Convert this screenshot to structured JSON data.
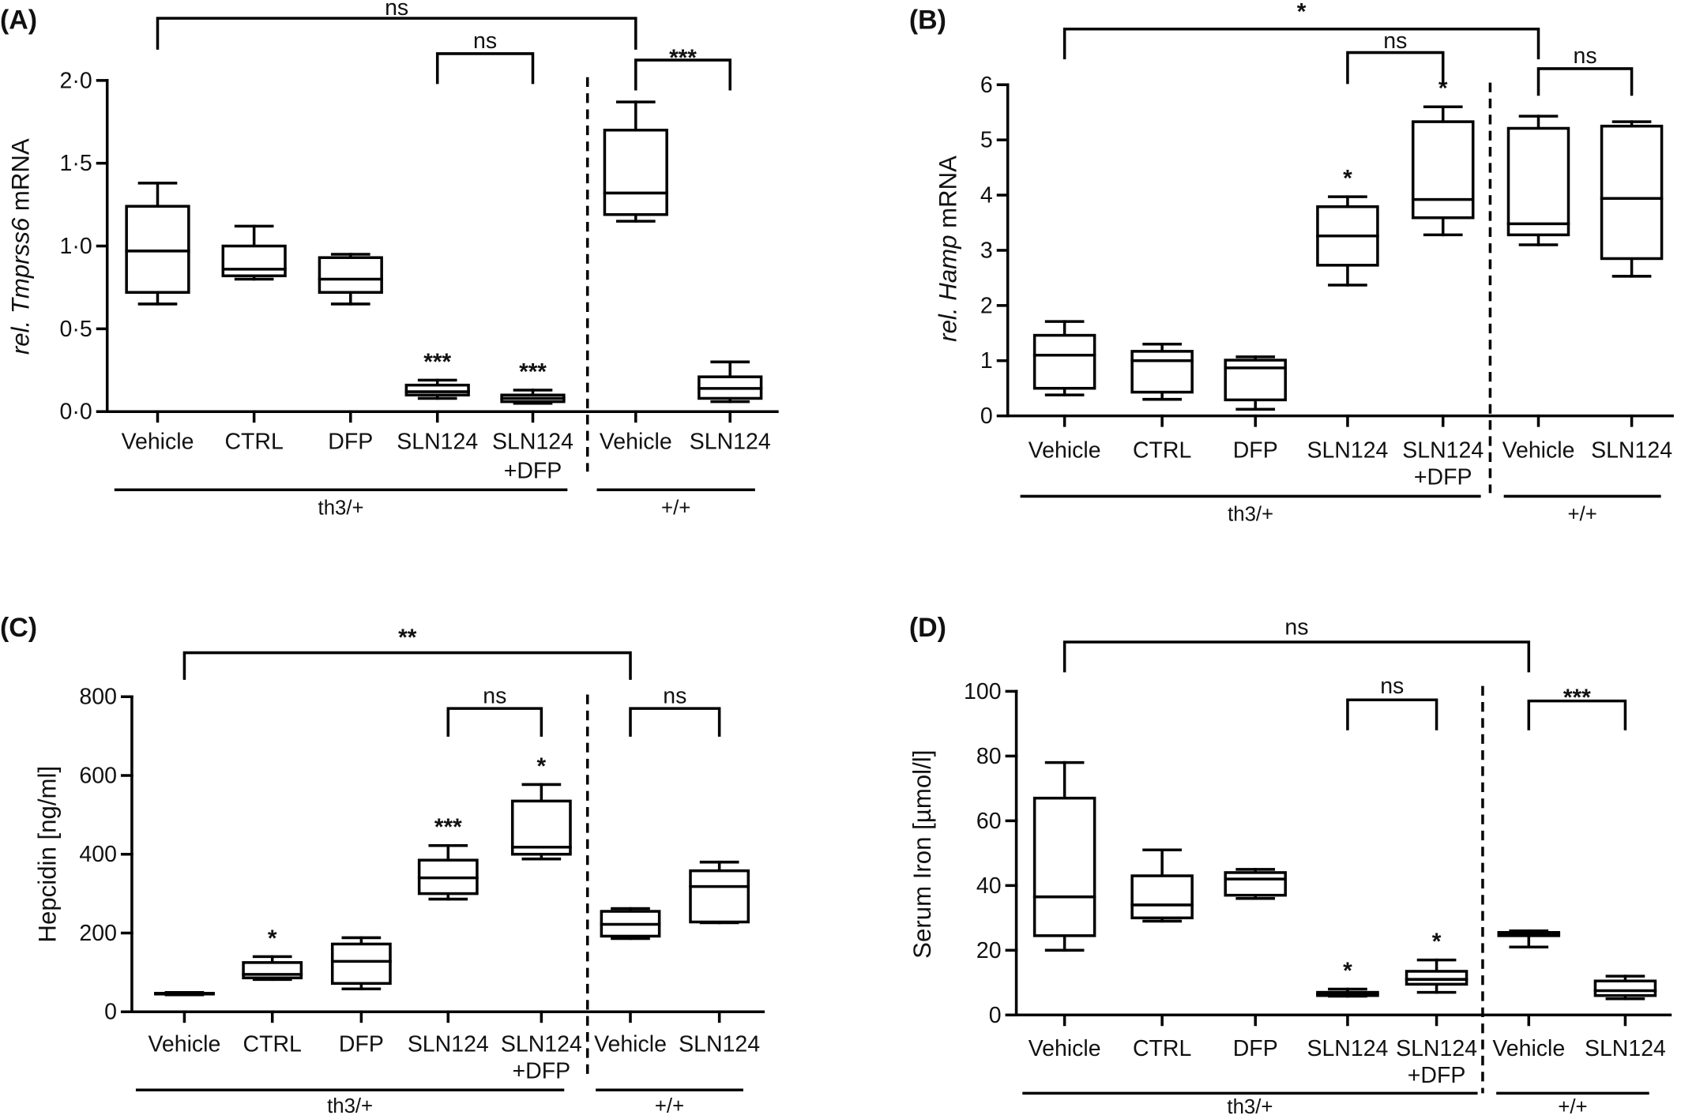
{
  "figure": {
    "background": "#ffffff",
    "line_color": "#000000"
  },
  "chart_data": [
    {
      "panel_label": "(A)",
      "type": "box",
      "ylabel": [
        {
          "text": "rel. Tmprss6",
          "italic": true
        },
        {
          "text": " mRNA",
          "italic": false
        }
      ],
      "ylim": [
        0,
        2.0
      ],
      "yticks": [
        0,
        0.5,
        1.0,
        1.5,
        2.0
      ],
      "ytick_labels": [
        "0·0",
        "0·5",
        "1·0",
        "1·5",
        "2·0"
      ],
      "grid": false,
      "categories": [
        [
          "Vehicle"
        ],
        [
          "CTRL"
        ],
        [
          "DFP"
        ],
        [
          "SLN124"
        ],
        [
          "SLN124",
          "+DFP"
        ],
        [
          "Vehicle"
        ],
        [
          "SLN124"
        ]
      ],
      "groups": [
        {
          "label": "th3/+",
          "first": 0,
          "last": 4
        },
        {
          "label": "+/+",
          "first": 5,
          "last": 6
        }
      ],
      "boxes": [
        {
          "min": 0.65,
          "q1": 0.72,
          "median": 0.97,
          "q3": 1.24,
          "max": 1.38
        },
        {
          "min": 0.8,
          "q1": 0.82,
          "median": 0.86,
          "q3": 1.0,
          "max": 1.12
        },
        {
          "min": 0.65,
          "q1": 0.72,
          "median": 0.8,
          "q3": 0.93,
          "max": 0.95
        },
        {
          "min": 0.08,
          "q1": 0.1,
          "median": 0.12,
          "q3": 0.16,
          "max": 0.19
        },
        {
          "min": 0.05,
          "q1": 0.06,
          "median": 0.08,
          "q3": 0.1,
          "max": 0.13
        },
        {
          "min": 1.15,
          "q1": 1.19,
          "median": 1.32,
          "q3": 1.7,
          "max": 1.87
        },
        {
          "min": 0.06,
          "q1": 0.08,
          "median": 0.14,
          "q3": 0.21,
          "max": 0.3
        }
      ],
      "marks_above": [
        {
          "category": 3,
          "text": "***"
        },
        {
          "category": 4,
          "text": "***"
        }
      ],
      "comparisons": [
        {
          "from": 0,
          "to": 5,
          "text": "ns"
        },
        {
          "from": 3,
          "to": 4,
          "text": "ns"
        },
        {
          "from": 5,
          "to": 6,
          "text": "***"
        }
      ]
    },
    {
      "panel_label": "(B)",
      "type": "box",
      "ylabel": [
        {
          "text": "rel. Hamp",
          "italic": true
        },
        {
          "text": " mRNA",
          "italic": false
        }
      ],
      "ylim": [
        0,
        6
      ],
      "yticks": [
        0,
        1,
        2,
        3,
        4,
        5,
        6
      ],
      "ytick_labels": [
        "0",
        "1",
        "2",
        "3",
        "4",
        "5",
        "6"
      ],
      "grid": false,
      "categories": [
        [
          "Vehicle"
        ],
        [
          "CTRL"
        ],
        [
          "DFP"
        ],
        [
          "SLN124"
        ],
        [
          "SLN124",
          "+DFP"
        ],
        [
          "Vehicle"
        ],
        [
          "SLN124"
        ]
      ],
      "groups": [
        {
          "label": "th3/+",
          "first": 0,
          "last": 4
        },
        {
          "label": "+/+",
          "first": 5,
          "last": 6
        }
      ],
      "boxes": [
        {
          "min": 0.38,
          "q1": 0.5,
          "median": 1.1,
          "q3": 1.46,
          "max": 1.71
        },
        {
          "min": 0.3,
          "q1": 0.43,
          "median": 1.0,
          "q3": 1.17,
          "max": 1.3
        },
        {
          "min": 0.12,
          "q1": 0.29,
          "median": 0.87,
          "q3": 1.01,
          "max": 1.07
        },
        {
          "min": 2.37,
          "q1": 2.73,
          "median": 3.26,
          "q3": 3.79,
          "max": 3.97
        },
        {
          "min": 3.28,
          "q1": 3.59,
          "median": 3.92,
          "q3": 5.33,
          "max": 5.6
        },
        {
          "min": 3.1,
          "q1": 3.28,
          "median": 3.48,
          "q3": 5.21,
          "max": 5.43
        },
        {
          "min": 2.53,
          "q1": 2.85,
          "median": 3.94,
          "q3": 5.25,
          "max": 5.33
        }
      ],
      "marks_above": [
        {
          "category": 3,
          "text": "*"
        },
        {
          "category": 4,
          "text": "*"
        }
      ],
      "comparisons": [
        {
          "from": 0,
          "to": 5,
          "text": "*"
        },
        {
          "from": 3,
          "to": 4,
          "text": "ns"
        },
        {
          "from": 5,
          "to": 6,
          "text": "ns"
        }
      ]
    },
    {
      "panel_label": "(C)",
      "type": "box",
      "ylabel": [
        {
          "text": "Hepcidin [ng/ml]",
          "italic": false
        }
      ],
      "ylim": [
        0,
        800
      ],
      "yticks": [
        0,
        200,
        400,
        600,
        800
      ],
      "ytick_labels": [
        "0",
        "200",
        "400",
        "600",
        "800"
      ],
      "grid": false,
      "categories": [
        [
          "Vehicle"
        ],
        [
          "CTRL"
        ],
        [
          "DFP"
        ],
        [
          "SLN124"
        ],
        [
          "SLN124",
          "+DFP"
        ],
        [
          "Vehicle"
        ],
        [
          "SLN124"
        ]
      ],
      "groups": [
        {
          "label": "th3/+",
          "first": 0,
          "last": 4
        },
        {
          "label": "+/+",
          "first": 5,
          "last": 6
        }
      ],
      "boxes": [
        {
          "min": 43,
          "q1": 45,
          "median": 46,
          "q3": 47,
          "max": 49
        },
        {
          "min": 82,
          "q1": 86,
          "median": 95,
          "q3": 125,
          "max": 140
        },
        {
          "min": 58,
          "q1": 72,
          "median": 128,
          "q3": 172,
          "max": 188
        },
        {
          "min": 286,
          "q1": 300,
          "median": 340,
          "q3": 385,
          "max": 422
        },
        {
          "min": 388,
          "q1": 400,
          "median": 418,
          "q3": 535,
          "max": 577
        },
        {
          "min": 186,
          "q1": 192,
          "median": 222,
          "q3": 255,
          "max": 262
        },
        {
          "min": 226,
          "q1": 228,
          "median": 318,
          "q3": 358,
          "max": 380
        }
      ],
      "marks_above": [
        {
          "category": 1,
          "text": "*"
        },
        {
          "category": 3,
          "text": "***"
        },
        {
          "category": 4,
          "text": "*"
        }
      ],
      "comparisons": [
        {
          "from": 0,
          "to": 5,
          "text": "**"
        },
        {
          "from": 3,
          "to": 4,
          "text": "ns"
        },
        {
          "from": 5,
          "to": 6,
          "text": "ns"
        }
      ]
    },
    {
      "panel_label": "(D)",
      "type": "box",
      "ylabel": [
        {
          "text": "Serum Iron [µmol/l]",
          "italic": false
        }
      ],
      "ylim": [
        0,
        100
      ],
      "yticks": [
        0,
        20,
        40,
        60,
        80,
        100
      ],
      "ytick_labels": [
        "0",
        "20",
        "40",
        "60",
        "80",
        "100"
      ],
      "grid": false,
      "categories": [
        [
          "Vehicle"
        ],
        [
          "CTRL"
        ],
        [
          "DFP"
        ],
        [
          "SLN124"
        ],
        [
          "SLN124",
          "+DFP"
        ],
        [
          "Vehicle"
        ],
        [
          "SLN124"
        ]
      ],
      "groups": [
        {
          "label": "th3/+",
          "first": 0,
          "last": 4
        },
        {
          "label": "+/+",
          "first": 5,
          "last": 6
        }
      ],
      "boxes": [
        {
          "min": 20,
          "q1": 24.5,
          "median": 36.5,
          "q3": 67,
          "max": 78
        },
        {
          "min": 29,
          "q1": 30,
          "median": 34,
          "q3": 43,
          "max": 51
        },
        {
          "min": 36,
          "q1": 37,
          "median": 42,
          "q3": 44,
          "max": 45
        },
        {
          "min": 5.8,
          "q1": 6,
          "median": 6.5,
          "q3": 7,
          "max": 8
        },
        {
          "min": 7,
          "q1": 9.5,
          "median": 11,
          "q3": 13.5,
          "max": 17
        },
        {
          "min": 21,
          "q1": 24.5,
          "median": 25,
          "q3": 25.5,
          "max": 26
        },
        {
          "min": 5,
          "q1": 6,
          "median": 7.5,
          "q3": 10.5,
          "max": 12
        }
      ],
      "marks_above": [
        {
          "category": 3,
          "text": "*"
        },
        {
          "category": 4,
          "text": "*"
        }
      ],
      "comparisons": [
        {
          "from": 0,
          "to": 5,
          "text": "ns"
        },
        {
          "from": 3,
          "to": 4,
          "text": "ns"
        },
        {
          "from": 5,
          "to": 6,
          "text": "***"
        }
      ]
    }
  ]
}
